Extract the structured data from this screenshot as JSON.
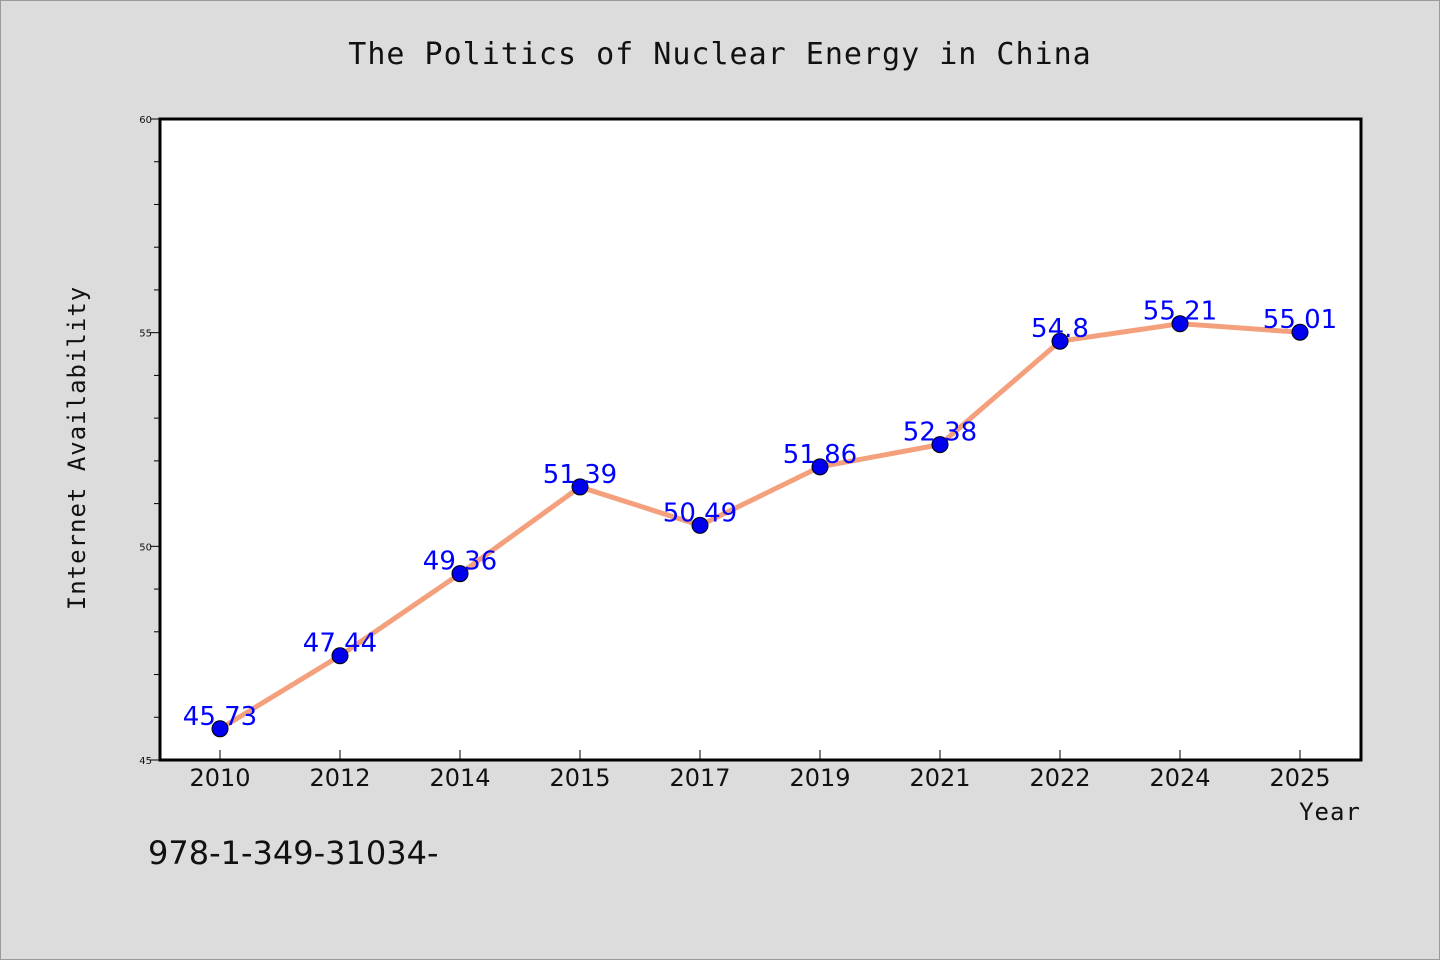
{
  "chart_data": {
    "type": "line",
    "title": "The Politics of Nuclear Energy in China",
    "xlabel": "Year",
    "ylabel": "Internet Availability",
    "categories": [
      "2010",
      "2012",
      "2014",
      "2015",
      "2017",
      "2019",
      "2021",
      "2022",
      "2024",
      "2025"
    ],
    "values": [
      45.73,
      47.44,
      49.36,
      51.39,
      50.49,
      51.86,
      52.38,
      54.8,
      55.21,
      55.01
    ],
    "data_labels": [
      "45.73",
      "47.44",
      "49.36",
      "51.39",
      "50.49",
      "51.86",
      "52.38",
      "54.8",
      "55.21",
      "55.01"
    ],
    "ylim": [
      45,
      60
    ],
    "yticks": [
      "45",
      "50",
      "55",
      "60"
    ],
    "grid": false,
    "line_color": "#f4a07c",
    "marker_color": "#0000ee",
    "label_color": "#0000ff"
  },
  "footer": {
    "isbn": "978-1-349-31034-"
  }
}
